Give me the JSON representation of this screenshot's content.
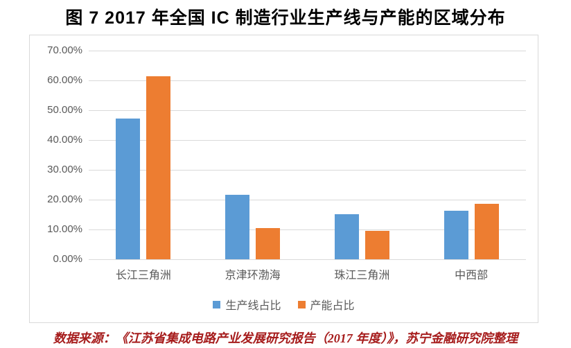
{
  "title": "图 7 2017 年全国 IC 制造行业生产线与产能的区域分布",
  "footer": "数据来源：《江苏省集成电路产业发展研究报告（2017 年度）》，苏宁金融研究院整理",
  "colors": {
    "series_blue": "#5B9BD5",
    "series_orange": "#ED7D31",
    "gridline": "#D9D9D9",
    "chart_border": "#D9D9D9",
    "axis_text": "#595959",
    "title_text": "#000000",
    "footer_text": "#A61C1C"
  },
  "chart_data": {
    "type": "bar",
    "categories": [
      "长江三角洲",
      "京津环渤海",
      "珠江三角洲",
      "中西部"
    ],
    "series": [
      {
        "name": "生产线占比",
        "color": "#5B9BD5",
        "values": [
          47.1,
          21.6,
          15.0,
          16.3
        ]
      },
      {
        "name": "产能占比",
        "color": "#ED7D31",
        "values": [
          61.5,
          10.4,
          9.5,
          18.6
        ]
      }
    ],
    "value_unit": "%",
    "ylim": [
      0,
      70
    ],
    "ytick_step": 10,
    "ytick_labels": [
      "0.00%",
      "10.00%",
      "20.00%",
      "30.00%",
      "40.00%",
      "50.00%",
      "60.00%",
      "70.00%"
    ],
    "grid": true,
    "legend_position": "bottom",
    "xlabel": "",
    "ylabel": ""
  }
}
